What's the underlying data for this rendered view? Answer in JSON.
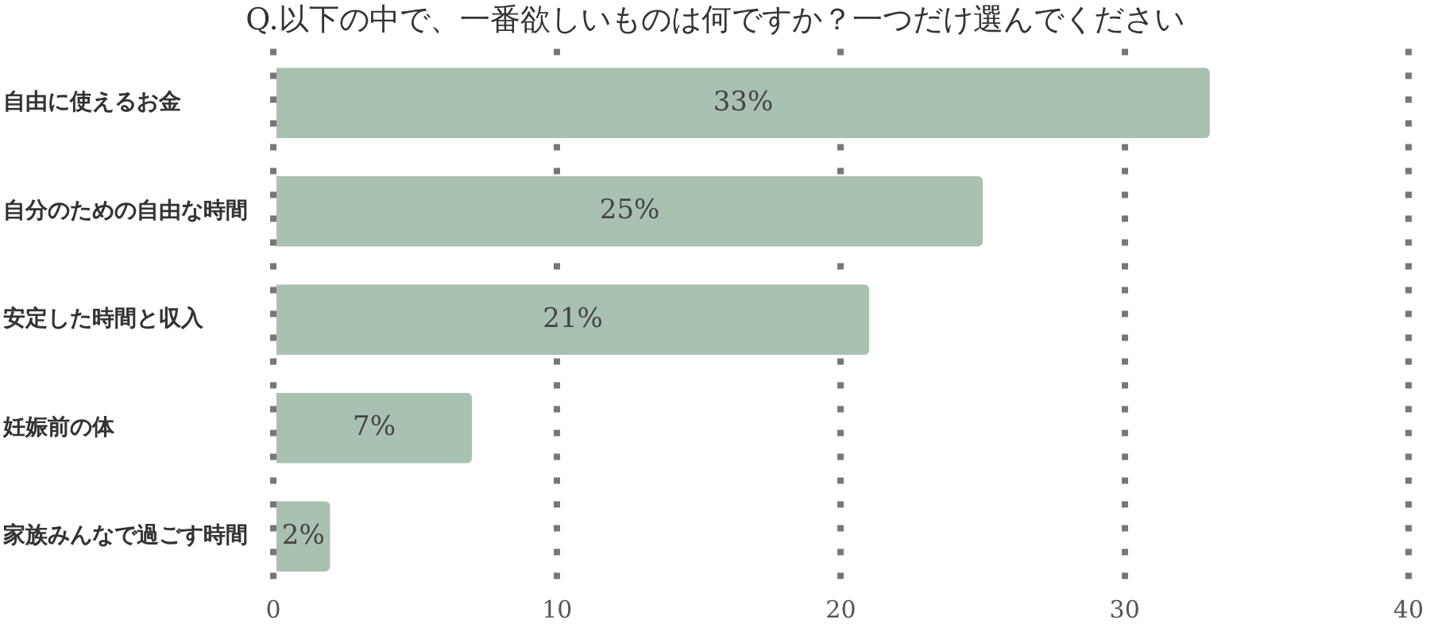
{
  "chart_data": {
    "type": "bar",
    "orientation": "horizontal",
    "title": "Q.以下の中で、一番欲しいものは何ですか？一つだけ選んでください",
    "categories": [
      "自由に使えるお金",
      "自分のための自由な時間",
      "安定した時間と収入",
      "妊娠前の体",
      "家族みんなで過ごす時間"
    ],
    "values": [
      33,
      25,
      21,
      7,
      2
    ],
    "value_labels": [
      "33%",
      "25%",
      "21%",
      "7%",
      "2%"
    ],
    "color": "#a9c1b0",
    "xlim": [
      0,
      40
    ],
    "xticks": [
      0,
      10,
      20,
      30,
      40
    ],
    "grid": "x"
  }
}
